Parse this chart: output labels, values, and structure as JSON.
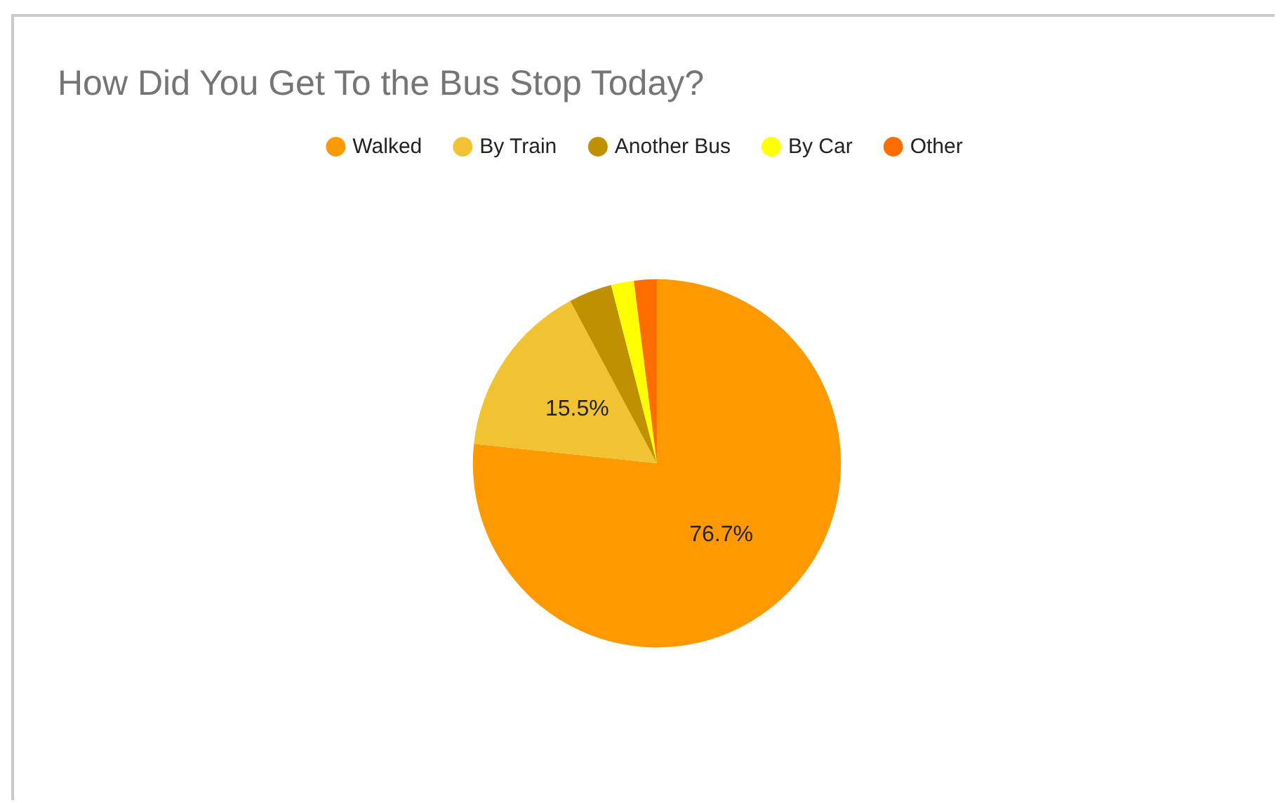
{
  "chart_data": {
    "type": "pie",
    "title": "How Did You Get To the Bus Stop Today?",
    "categories": [
      "Walked",
      "By Train",
      "Another Bus",
      "By Car",
      "Other"
    ],
    "values": [
      76.7,
      15.5,
      3.8,
      2.0,
      2.0
    ],
    "colors": [
      "#ff9900",
      "#f1c232",
      "#bf9000",
      "#ffff00",
      "#ff6d01"
    ],
    "value_labels": [
      "76.7%",
      "15.5%",
      null,
      null,
      null
    ],
    "legend": "top"
  }
}
